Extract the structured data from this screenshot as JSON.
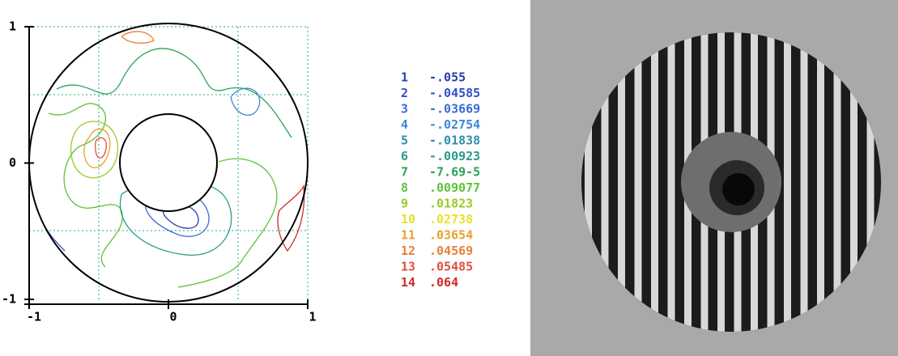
{
  "plot": {
    "xlim": [
      -1,
      1
    ],
    "ylim": [
      -1,
      1
    ],
    "xticks": [
      -1,
      0,
      1
    ],
    "yticks": [
      -1,
      0,
      1
    ]
  },
  "legend": {
    "levels": [
      {
        "index": "1",
        "label": "-.055",
        "color": "#2a3fb0"
      },
      {
        "index": "2",
        "label": "-.04585",
        "color": "#2f52c8"
      },
      {
        "index": "3",
        "label": "-.03669",
        "color": "#3a6ad8"
      },
      {
        "index": "4",
        "label": "-.02754",
        "color": "#3f86d8"
      },
      {
        "index": "5",
        "label": "-.01838",
        "color": "#2f8fa8"
      },
      {
        "index": "6",
        "label": "-.00923",
        "color": "#2a9a8c"
      },
      {
        "index": "7",
        "label": "-7.69-5",
        "color": "#2aa35a"
      },
      {
        "index": "8",
        "label": ".009077",
        "color": "#5ec23a"
      },
      {
        "index": "9",
        "label": ".01823",
        "color": "#9acb2a"
      },
      {
        "index": "10",
        "label": ".02738",
        "color": "#e8e030"
      },
      {
        "index": "11",
        "label": ".03654",
        "color": "#e8a030"
      },
      {
        "index": "12",
        "label": ".04569",
        "color": "#e88038"
      },
      {
        "index": "13",
        "label": ".05485",
        "color": "#e05040"
      },
      {
        "index": "14",
        "label": ".064",
        "color": "#d02828"
      }
    ]
  }
}
